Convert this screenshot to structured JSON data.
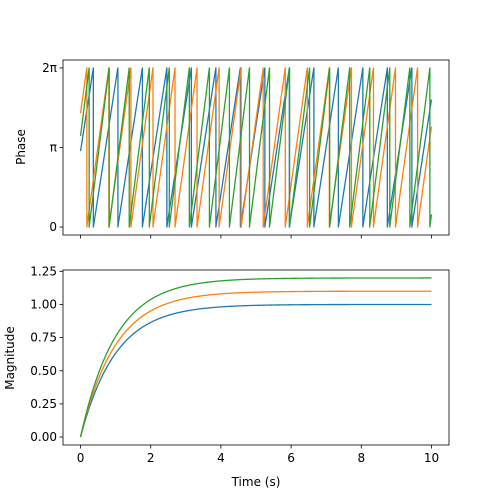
{
  "chart_data": [
    {
      "type": "line",
      "panel": "top",
      "title": "",
      "xlabel": "",
      "ylabel": "Phase",
      "xlim": [
        -0.5,
        10.5
      ],
      "ylim": [
        -0.314,
        6.597
      ],
      "x_ticks": [
        0,
        2,
        4,
        6,
        8,
        10
      ],
      "x_tick_labels_shown": false,
      "y_ticks": [
        {
          "value": 0,
          "label": "0"
        },
        {
          "value": 3.14159,
          "label": "π"
        },
        {
          "value": 6.28319,
          "label": "2π"
        }
      ],
      "grid": false,
      "legend": "none",
      "description_of_values": "phase wrapped to [0, 2π)",
      "series": [
        {
          "color": "#1f77b4",
          "initial_phase": 3.0,
          "angular_rate": 9.0
        },
        {
          "color": "#ff7f0e",
          "initial_phase": 4.5,
          "angular_rate": 10.0
        },
        {
          "color": "#2ca02c",
          "initial_phase": 3.6,
          "angular_rate": 11.0
        }
      ]
    },
    {
      "type": "line",
      "panel": "bottom",
      "title": "",
      "xlabel": "Time (s)",
      "ylabel": "Magnitude",
      "xlim": [
        -0.5,
        10.5
      ],
      "ylim": [
        -0.06,
        1.26
      ],
      "x_ticks": [
        0,
        2,
        4,
        6,
        8,
        10
      ],
      "y_ticks": [
        0.0,
        0.25,
        0.5,
        0.75,
        1.0,
        1.25
      ],
      "y_tick_labels": [
        "0.00",
        "0.25",
        "0.50",
        "0.75",
        "1.00",
        "1.25"
      ],
      "grid": false,
      "legend": "none",
      "series": [
        {
          "color": "#1f77b4",
          "steady_state": 1.0,
          "time_constant": 1.0
        },
        {
          "color": "#ff7f0e",
          "steady_state": 1.1,
          "time_constant": 1.0
        },
        {
          "color": "#2ca02c",
          "steady_state": 1.2,
          "time_constant": 1.0
        }
      ]
    }
  ]
}
